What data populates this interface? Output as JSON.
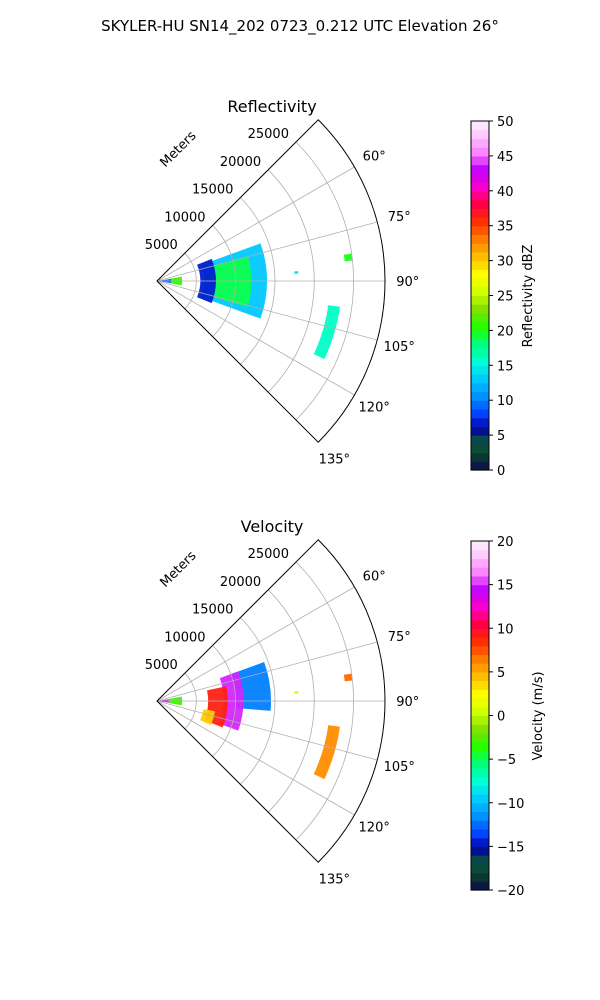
{
  "figure": {
    "suptitle": "SKYLER-HU  SN14_202  0723_0.212 UTC Elevation 26°"
  },
  "chart_data": [
    {
      "type": "polar-sector",
      "title": "Reflectivity",
      "radial_label": "Meters",
      "radial_ticks": [
        5000,
        10000,
        15000,
        20000,
        25000
      ],
      "radial_tick_labels": [
        "5000",
        "10000",
        "15000",
        "20000",
        "25000"
      ],
      "rmax": 29000,
      "angle_range_deg": [
        45,
        135
      ],
      "angle_ticks": [
        60,
        75,
        90,
        105,
        120,
        135
      ],
      "angle_tick_labels": [
        "60°",
        "75°",
        "90°",
        "105°",
        "120°",
        "135°"
      ],
      "grid": true,
      "colorbar": {
        "label": "Reflectivity dBZ",
        "vmin": 0,
        "vmax": 50,
        "ticks": [
          0,
          5,
          10,
          15,
          20,
          25,
          30,
          35,
          40,
          45,
          50
        ],
        "tick_labels": [
          "0",
          "5",
          "10",
          "15",
          "20",
          "25",
          "30",
          "35",
          "40",
          "45",
          "50"
        ]
      },
      "echoes": [
        {
          "r": [
            6000,
            14000
          ],
          "theta": [
            70,
            110
          ],
          "value": 13
        },
        {
          "r": [
            7000,
            12000
          ],
          "theta": [
            75,
            106
          ],
          "value": 19
        },
        {
          "r": [
            5500,
            7500
          ],
          "theta": [
            68,
            112
          ],
          "value": 7
        },
        {
          "r": [
            1500,
            3200
          ],
          "theta": [
            80,
            100
          ],
          "value": 21
        },
        {
          "r": [
            400,
            1800
          ],
          "theta": [
            82,
            98
          ],
          "value": 9
        },
        {
          "r": [
            17500,
            18000
          ],
          "theta": [
            86,
            87
          ],
          "value": 14
        },
        {
          "r": [
            22000,
            23500
          ],
          "theta": [
            98,
            115
          ],
          "value": 16
        },
        {
          "r": [
            24000,
            25000
          ],
          "theta": [
            82,
            84
          ],
          "value": 20
        }
      ]
    },
    {
      "type": "polar-sector",
      "title": "Velocity",
      "radial_label": "Meters",
      "radial_ticks": [
        5000,
        10000,
        15000,
        20000,
        25000
      ],
      "radial_tick_labels": [
        "5000",
        "10000",
        "15000",
        "20000",
        "25000"
      ],
      "rmax": 29000,
      "angle_range_deg": [
        45,
        135
      ],
      "angle_ticks": [
        60,
        75,
        90,
        105,
        120,
        135
      ],
      "angle_tick_labels": [
        "60°",
        "75°",
        "90°",
        "105°",
        "120°",
        "135°"
      ],
      "grid": true,
      "colorbar": {
        "label": "Velocity (m/s)",
        "vmin": -20,
        "vmax": 20,
        "ticks": [
          -20,
          -15,
          -10,
          -5,
          0,
          5,
          10,
          15,
          20
        ],
        "tick_labels": [
          "−20",
          "−15",
          "−10",
          "−5",
          "0",
          "5",
          "10",
          "15",
          "20"
        ]
      },
      "echoes": [
        {
          "r": [
            10000,
            14500
          ],
          "theta": [
            70,
            95
          ],
          "value": -12
        },
        {
          "r": [
            8500,
            11000
          ],
          "theta": [
            70,
            110
          ],
          "value": 15
        },
        {
          "r": [
            6500,
            9000
          ],
          "theta": [
            78,
            112
          ],
          "value": 9
        },
        {
          "r": [
            6000,
            7500
          ],
          "theta": [
            100,
            114
          ],
          "value": 4
        },
        {
          "r": [
            1500,
            3200
          ],
          "theta": [
            80,
            100
          ],
          "value": -3
        },
        {
          "r": [
            400,
            1500
          ],
          "theta": [
            82,
            98
          ],
          "value": 14
        },
        {
          "r": [
            17500,
            18000
          ],
          "theta": [
            86,
            87
          ],
          "value": 3
        },
        {
          "r": [
            22000,
            23500
          ],
          "theta": [
            98,
            115
          ],
          "value": 6
        },
        {
          "r": [
            24000,
            25000
          ],
          "theta": [
            82,
            84
          ],
          "value": 7
        }
      ]
    }
  ]
}
